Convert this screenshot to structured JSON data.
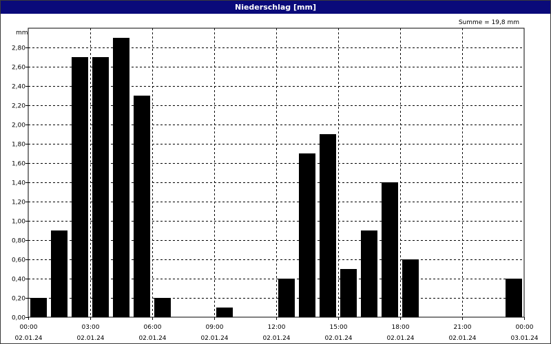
{
  "window": {
    "title": "Niederschlag [mm]"
  },
  "chart_data": {
    "type": "bar",
    "title": "Niederschlag [mm]",
    "ylabel": "mm",
    "annotation": "Summe = 19,8 mm",
    "ylim": [
      0,
      3.0
    ],
    "yticks": [
      0,
      0.2,
      0.4,
      0.6,
      0.8,
      1.0,
      1.2,
      1.4,
      1.6,
      1.8,
      2.0,
      2.2,
      2.4,
      2.6,
      2.8
    ],
    "ytick_labels": [
      "0,00",
      "0,20",
      "0,40",
      "0,60",
      "0,80",
      "1,00",
      "1,20",
      "1,40",
      "1,60",
      "1,80",
      "2,00",
      "2,20",
      "2,40",
      "2,60",
      "2,80"
    ],
    "xticks": [
      {
        "time": "00:00",
        "date": "02.01.24"
      },
      {
        "time": "03:00",
        "date": "02.01.24"
      },
      {
        "time": "06:00",
        "date": "02.01.24"
      },
      {
        "time": "09:00",
        "date": "02.01.24"
      },
      {
        "time": "12:00",
        "date": "02.01.24"
      },
      {
        "time": "15:00",
        "date": "02.01.24"
      },
      {
        "time": "18:00",
        "date": "02.01.24"
      },
      {
        "time": "21:00",
        "date": "02.01.24"
      },
      {
        "time": "00:00",
        "date": "03.01.24"
      }
    ],
    "bar_color": "#000000",
    "grid": true,
    "categories": [
      "00:00",
      "01:00",
      "02:00",
      "03:00",
      "04:00",
      "05:00",
      "06:00",
      "07:00",
      "08:00",
      "09:00",
      "10:00",
      "11:00",
      "12:00",
      "13:00",
      "14:00",
      "15:00",
      "16:00",
      "17:00",
      "18:00",
      "19:00",
      "20:00",
      "21:00",
      "22:00",
      "23:00"
    ],
    "values": [
      0.2,
      0.9,
      2.7,
      2.7,
      2.9,
      2.3,
      0.2,
      0.0,
      0.0,
      0.1,
      0.0,
      0.0,
      0.4,
      1.7,
      1.9,
      0.5,
      0.9,
      1.4,
      0.6,
      0.0,
      0.0,
      0.0,
      0.0,
      0.4
    ]
  }
}
